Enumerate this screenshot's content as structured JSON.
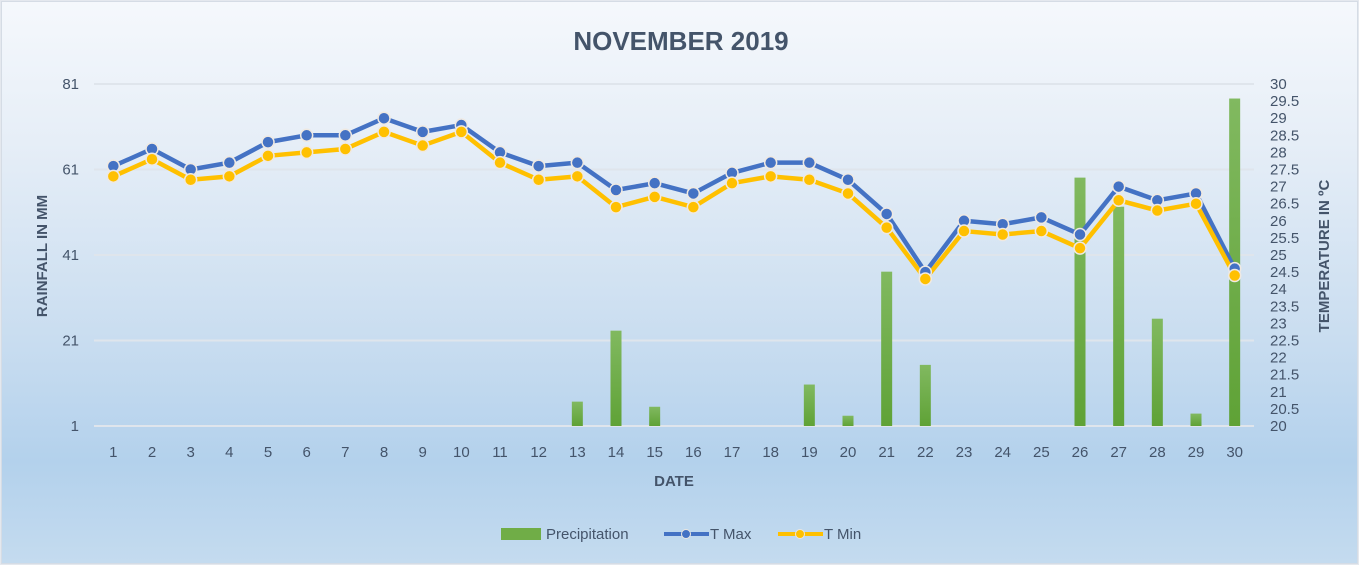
{
  "chart_data": {
    "type": "bar+line",
    "title": "NOVEMBER 2019",
    "xlabel": "DATE",
    "ylabel": "RAINFALL IN MM",
    "y2label": "TEMPERATURE IN ºC",
    "categories": [
      "1",
      "2",
      "3",
      "4",
      "5",
      "6",
      "7",
      "8",
      "9",
      "10",
      "11",
      "12",
      "13",
      "14",
      "15",
      "16",
      "17",
      "18",
      "19",
      "20",
      "21",
      "22",
      "23",
      "24",
      "25",
      "26",
      "27",
      "28",
      "29",
      "30"
    ],
    "ylim": [
      1,
      81
    ],
    "yticks": [
      "1",
      "21",
      "41",
      "61",
      "81"
    ],
    "y2lim": [
      20,
      30
    ],
    "y2ticks": [
      "20",
      "20.5",
      "21",
      "21.5",
      "22",
      "22.5",
      "23",
      "23.5",
      "24",
      "24.5",
      "25",
      "25.5",
      "26",
      "26.5",
      "27",
      "27.5",
      "28",
      "28.5",
      "29",
      "29.5",
      "30"
    ],
    "grid": true,
    "legend_position": "bottom",
    "series": [
      {
        "name": "Precipitation",
        "type": "bar",
        "axis": "left",
        "color": "#70ad47",
        "values": [
          0,
          0,
          0,
          0,
          0,
          0,
          0,
          0,
          0,
          0,
          0,
          0,
          5.7,
          22.3,
          4.5,
          0,
          0,
          0,
          9.7,
          2.4,
          36.1,
          14.3,
          0,
          0,
          0,
          58.1,
          51.3,
          25.1,
          2.9,
          76.6
        ]
      },
      {
        "name": "T Max",
        "type": "line",
        "axis": "right",
        "color": "#4472c4",
        "values": [
          27.6,
          28.1,
          27.5,
          27.7,
          28.3,
          28.5,
          28.5,
          29.0,
          28.6,
          28.8,
          28.0,
          27.6,
          27.7,
          26.9,
          27.1,
          26.8,
          27.4,
          27.7,
          27.7,
          27.2,
          26.2,
          24.5,
          26.0,
          25.9,
          26.1,
          25.6,
          27.0,
          26.6,
          26.8,
          24.6
        ]
      },
      {
        "name": "T Min",
        "type": "line",
        "axis": "right",
        "color": "#ffc000",
        "values": [
          27.3,
          27.8,
          27.2,
          27.3,
          27.9,
          28.0,
          28.1,
          28.6,
          28.2,
          28.6,
          27.7,
          27.2,
          27.3,
          26.4,
          26.7,
          26.4,
          27.1,
          27.3,
          27.2,
          26.8,
          25.8,
          24.3,
          25.7,
          25.6,
          25.7,
          25.2,
          26.6,
          26.3,
          26.5,
          24.4
        ]
      }
    ]
  }
}
